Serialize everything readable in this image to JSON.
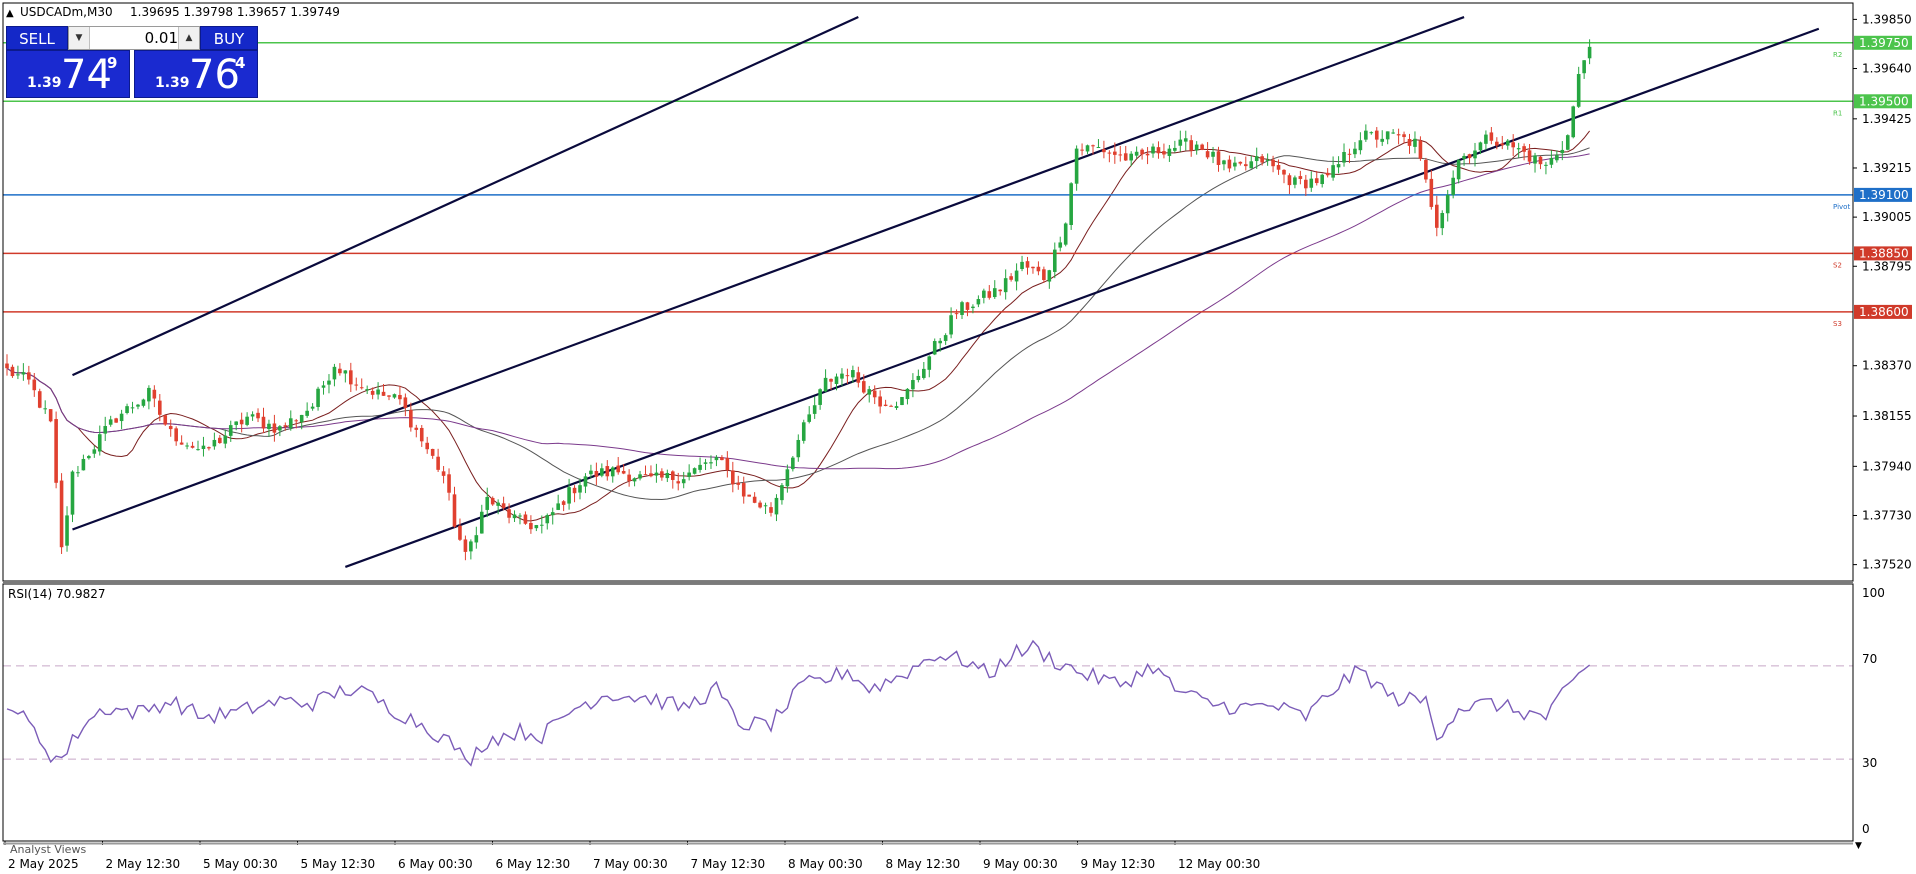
{
  "header": {
    "symbol_label": "USDCADm,M30",
    "ohlc": "1.39695 1.39798 1.39657 1.39749"
  },
  "trade_panel": {
    "sell_label": "SELL",
    "buy_label": "BUY",
    "volume": "0.01",
    "bid": {
      "prefix": "1.39",
      "big": "74",
      "pip": "9"
    },
    "ask": {
      "prefix": "1.39",
      "big": "76",
      "pip": "4"
    }
  },
  "indicator": {
    "rsi_label": "RSI(14) 70.9827",
    "ticks": [
      "100",
      "70",
      "30",
      "0"
    ]
  },
  "bottom_tab": "Analyst Views",
  "colors": {
    "bull": "#26a641",
    "bear": "#e0402f",
    "pivot": "#1e6fc8",
    "support": "#d03a2a",
    "resistance": "#4cc44c",
    "channel": "#0a0a3c",
    "rsi": "#7b5cb8"
  },
  "chart_data": [
    {
      "type": "candlestick",
      "y_ticks": [
        "1.39850",
        "1.39640",
        "1.39425",
        "1.39215",
        "1.39005",
        "1.38795",
        "1.38370",
        "1.38155",
        "1.37940",
        "1.37730",
        "1.37520"
      ],
      "x_ticks": [
        "2 May 2025",
        "2 May 12:30",
        "5 May 00:30",
        "5 May 12:30",
        "6 May 00:30",
        "6 May 12:30",
        "7 May 00:30",
        "7 May 12:30",
        "8 May 00:30",
        "8 May 12:30",
        "9 May 00:30",
        "9 May 12:30",
        "12 May 00:30"
      ],
      "ylim": [
        1.3745,
        1.3992
      ],
      "levels": [
        {
          "label": "R2",
          "value": 1.3975,
          "badge": "1.39750",
          "kind": "resistance"
        },
        {
          "label": "R1",
          "value": 1.395,
          "badge": "1.39500",
          "kind": "resistance"
        },
        {
          "label": "Pivot",
          "value": 1.391,
          "badge": "1.39100",
          "kind": "pivot"
        },
        {
          "label": "S2",
          "value": 1.3885,
          "badge": "1.38850",
          "kind": "support"
        },
        {
          "label": "S3",
          "value": 1.386,
          "badge": "1.38600",
          "kind": "support"
        }
      ],
      "channel_lines": [
        {
          "from": [
            12,
            1.3833
          ],
          "to": [
            156,
            1.3986
          ]
        },
        {
          "from": [
            12,
            1.3767
          ],
          "to": [
            267,
            1.3986
          ]
        },
        {
          "from": [
            62,
            1.3751
          ],
          "to": [
            332,
            1.3981
          ]
        }
      ],
      "anchors": [
        [
          0,
          1.3835
        ],
        [
          4,
          1.383
        ],
        [
          8,
          1.3812
        ],
        [
          10,
          1.3758
        ],
        [
          12,
          1.379
        ],
        [
          15,
          1.38
        ],
        [
          20,
          1.3815
        ],
        [
          26,
          1.3825
        ],
        [
          30,
          1.3808
        ],
        [
          36,
          1.38
        ],
        [
          44,
          1.3815
        ],
        [
          50,
          1.381
        ],
        [
          56,
          1.382
        ],
        [
          60,
          1.3838
        ],
        [
          64,
          1.383
        ],
        [
          68,
          1.3825
        ],
        [
          72,
          1.3822
        ],
        [
          76,
          1.3805
        ],
        [
          80,
          1.379
        ],
        [
          82,
          1.377
        ],
        [
          84,
          1.3755
        ],
        [
          88,
          1.378
        ],
        [
          94,
          1.377
        ],
        [
          98,
          1.3768
        ],
        [
          102,
          1.378
        ],
        [
          106,
          1.379
        ],
        [
          112,
          1.3792
        ],
        [
          118,
          1.3788
        ],
        [
          124,
          1.379
        ],
        [
          130,
          1.3797
        ],
        [
          136,
          1.378
        ],
        [
          140,
          1.3775
        ],
        [
          144,
          1.38
        ],
        [
          146,
          1.381
        ],
        [
          150,
          1.383
        ],
        [
          154,
          1.3835
        ],
        [
          160,
          1.3822
        ],
        [
          164,
          1.3822
        ],
        [
          170,
          1.3845
        ],
        [
          174,
          1.386
        ],
        [
          178,
          1.3865
        ],
        [
          182,
          1.387
        ],
        [
          186,
          1.388
        ],
        [
          190,
          1.3875
        ],
        [
          192,
          1.3885
        ],
        [
          194,
          1.39
        ],
        [
          196,
          1.393
        ],
        [
          200,
          1.393
        ],
        [
          206,
          1.3925
        ],
        [
          212,
          1.393
        ],
        [
          218,
          1.3932
        ],
        [
          224,
          1.392
        ],
        [
          230,
          1.3925
        ],
        [
          236,
          1.3915
        ],
        [
          242,
          1.3917
        ],
        [
          248,
          1.3935
        ],
        [
          254,
          1.3935
        ],
        [
          258,
          1.3932
        ],
        [
          262,
          1.3898
        ],
        [
          266,
          1.3925
        ],
        [
          272,
          1.3935
        ],
        [
          278,
          1.3928
        ],
        [
          282,
          1.3922
        ],
        [
          284,
          1.3928
        ],
        [
          286,
          1.3935
        ],
        [
          288,
          1.396
        ],
        [
          290,
          1.3976
        ]
      ],
      "rsi_anchors": [
        [
          0,
          55
        ],
        [
          4,
          45
        ],
        [
          8,
          32
        ],
        [
          10,
          30
        ],
        [
          14,
          45
        ],
        [
          18,
          52
        ],
        [
          24,
          50
        ],
        [
          30,
          55
        ],
        [
          36,
          48
        ],
        [
          42,
          50
        ],
        [
          50,
          55
        ],
        [
          56,
          54
        ],
        [
          62,
          60
        ],
        [
          66,
          58
        ],
        [
          70,
          52
        ],
        [
          76,
          45
        ],
        [
          82,
          36
        ],
        [
          84,
          28
        ],
        [
          88,
          38
        ],
        [
          94,
          42
        ],
        [
          98,
          40
        ],
        [
          104,
          52
        ],
        [
          110,
          58
        ],
        [
          118,
          56
        ],
        [
          124,
          52
        ],
        [
          130,
          60
        ],
        [
          134,
          45
        ],
        [
          140,
          45
        ],
        [
          146,
          62
        ],
        [
          150,
          64
        ],
        [
          154,
          68
        ],
        [
          158,
          60
        ],
        [
          164,
          66
        ],
        [
          170,
          75
        ],
        [
          176,
          72
        ],
        [
          180,
          66
        ],
        [
          184,
          75
        ],
        [
          188,
          78
        ],
        [
          192,
          72
        ],
        [
          198,
          66
        ],
        [
          204,
          62
        ],
        [
          210,
          70
        ],
        [
          214,
          60
        ],
        [
          220,
          54
        ],
        [
          226,
          52
        ],
        [
          232,
          53
        ],
        [
          238,
          48
        ],
        [
          244,
          62
        ],
        [
          248,
          68
        ],
        [
          254,
          56
        ],
        [
          260,
          55
        ],
        [
          262,
          40
        ],
        [
          266,
          52
        ],
        [
          272,
          54
        ],
        [
          278,
          50
        ],
        [
          282,
          48
        ],
        [
          286,
          60
        ],
        [
          290,
          71
        ]
      ]
    }
  ]
}
